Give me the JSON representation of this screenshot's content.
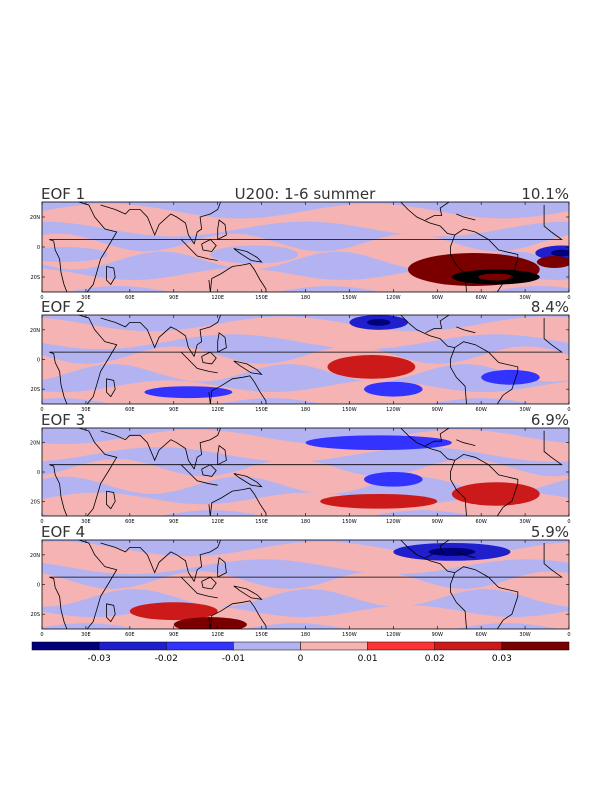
{
  "chart_data": {
    "type": "heatmap",
    "title": "U200: 1-6 summer",
    "variable": "U200",
    "panels": [
      {
        "label": "EOF 1",
        "variance": "10.1%"
      },
      {
        "label": "EOF 2",
        "variance": "8.4%"
      },
      {
        "label": "EOF 3",
        "variance": "6.9%"
      },
      {
        "label": "EOF 4",
        "variance": "5.9%"
      }
    ],
    "x_ticks": [
      "0",
      "30E",
      "60E",
      "90E",
      "120E",
      "150E",
      "180",
      "150W",
      "120W",
      "90W",
      "60W",
      "30W",
      "0"
    ],
    "y_ticks": [
      "20N",
      "0",
      "20S"
    ],
    "colorbar": {
      "levels": [
        -0.04,
        -0.03,
        -0.02,
        -0.01,
        0,
        0.01,
        0.02,
        0.03,
        0.04
      ],
      "labels": [
        "-0.03",
        "-0.02",
        "-0.01",
        "0",
        "0.01",
        "0.02",
        "0.03"
      ],
      "colors": [
        "#00007a",
        "#1f1fcc",
        "#3333ff",
        "#b3b3f2",
        "#f5b3b3",
        "#ff3333",
        "#cc1a1a",
        "#7a0000"
      ]
    },
    "features": [
      [
        {
          "lon": 355,
          "lat": -4,
          "rx": 18,
          "ry": 5,
          "level": 1
        },
        {
          "lon": 295,
          "lat": -15,
          "rx": 45,
          "ry": 11,
          "level": 7
        },
        {
          "lon": 310,
          "lat": -20,
          "rx": 30,
          "ry": 5,
          "level": 8
        },
        {
          "lon": 15,
          "lat": -5,
          "rx": 30,
          "ry": 5,
          "level": 3
        },
        {
          "lon": 350,
          "lat": -10,
          "rx": 12,
          "ry": 4,
          "level": 7
        },
        {
          "lon": 145,
          "lat": -5,
          "rx": 30,
          "ry": 6,
          "level": 3
        }
      ],
      [
        {
          "lon": 230,
          "lat": 25,
          "rx": 20,
          "ry": 5,
          "level": 1
        },
        {
          "lon": 225,
          "lat": -5,
          "rx": 30,
          "ry": 8,
          "level": 6
        },
        {
          "lon": 240,
          "lat": -20,
          "rx": 20,
          "ry": 5,
          "level": 2
        },
        {
          "lon": 100,
          "lat": -22,
          "rx": 30,
          "ry": 4,
          "level": 2
        },
        {
          "lon": 320,
          "lat": -12,
          "rx": 20,
          "ry": 5,
          "level": 2
        }
      ],
      [
        {
          "lon": 230,
          "lat": 20,
          "rx": 50,
          "ry": 5,
          "level": 2
        },
        {
          "lon": 240,
          "lat": -5,
          "rx": 20,
          "ry": 5,
          "level": 2
        },
        {
          "lon": 310,
          "lat": -15,
          "rx": 30,
          "ry": 8,
          "level": 6
        },
        {
          "lon": 230,
          "lat": -20,
          "rx": 40,
          "ry": 5,
          "level": 6
        }
      ],
      [
        {
          "lon": 280,
          "lat": 22,
          "rx": 40,
          "ry": 6,
          "level": 1
        },
        {
          "lon": 90,
          "lat": -18,
          "rx": 30,
          "ry": 6,
          "level": 6
        },
        {
          "lon": 115,
          "lat": -27,
          "rx": 25,
          "ry": 5,
          "level": 7
        }
      ]
    ]
  }
}
